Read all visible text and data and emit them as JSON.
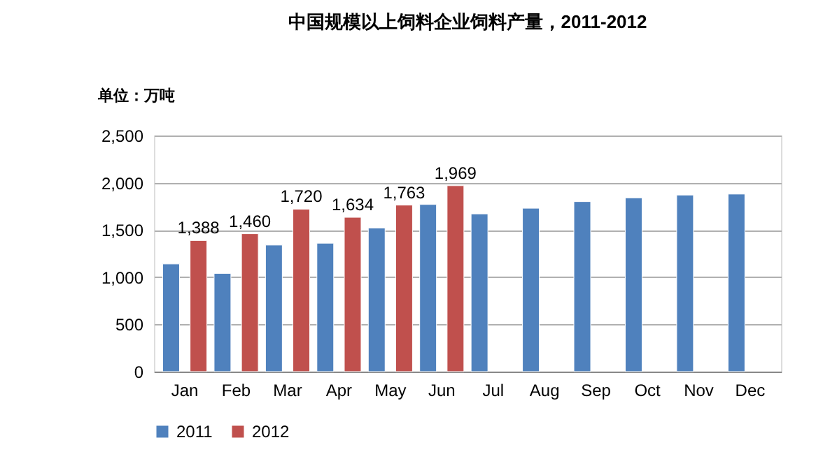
{
  "chart_data": {
    "type": "bar",
    "title": "中国规模以上饲料企业饲料产量，2011-2012",
    "annotations": [
      "单位：万吨"
    ],
    "categories": [
      "Jan",
      "Feb",
      "Mar",
      "Apr",
      "May",
      "Jun",
      "Jul",
      "Aug",
      "Sep",
      "Oct",
      "Nov",
      "Dec"
    ],
    "series": [
      {
        "name": "2011",
        "color": "#4f81bd",
        "values": [
          1140,
          1040,
          1340,
          1360,
          1520,
          1770,
          1670,
          1730,
          1800,
          1840,
          1870,
          1880
        ]
      },
      {
        "name": "2012",
        "color": "#c0504d",
        "values": [
          1388,
          1460,
          1720,
          1634,
          1763,
          1969,
          null,
          null,
          null,
          null,
          null,
          null
        ],
        "value_labels": [
          "1,388",
          "1,460",
          "1,720",
          "1,634",
          "1,763",
          "1,969",
          null,
          null,
          null,
          null,
          null,
          null
        ]
      }
    ],
    "ylim": [
      0,
      2500
    ],
    "yticks": [
      0,
      {
        "value": 500,
        "label": "500"
      },
      {
        "value": 1000,
        "label": "1,000"
      },
      {
        "value": 1500,
        "label": "1,500"
      },
      {
        "value": 2000,
        "label": "2,000"
      },
      {
        "value": 2500,
        "label": "2,500"
      }
    ],
    "grid": "y",
    "legend": "bottom"
  }
}
